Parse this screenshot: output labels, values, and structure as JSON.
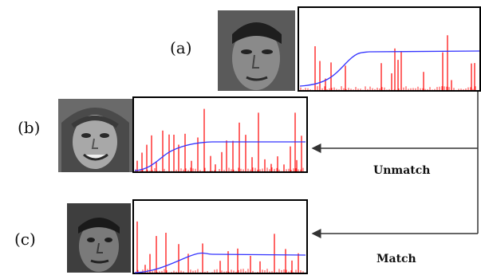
{
  "panels": [
    {
      "id": "a",
      "label": "(a)",
      "photo": "face-photo-a",
      "spikes": [
        22,
        28,
        35,
        42,
        60,
        105,
        118,
        122,
        126,
        130,
        158,
        182,
        188,
        193,
        218,
        222
      ]
    },
    {
      "id": "b",
      "label": "(b)",
      "photo": "face-photo-b",
      "spikes": [
        6,
        12,
        18,
        24,
        30,
        38,
        46,
        52,
        58,
        66,
        74,
        82,
        90,
        98,
        104,
        112,
        118,
        126,
        134,
        142,
        150,
        158,
        166,
        174,
        182,
        190,
        198,
        204,
        212,
        206
      ]
    },
    {
      "id": "c",
      "label": "(c)",
      "photo": "face-photo-c",
      "spikes": [
        6,
        16,
        22,
        30,
        42,
        58,
        70,
        88,
        110,
        120,
        132,
        148,
        160,
        178,
        192,
        200,
        208
      ]
    }
  ],
  "connections": [
    {
      "from": "a",
      "to": "b",
      "label": "Unmatch"
    },
    {
      "from": "a",
      "to": "c",
      "label": "Match"
    }
  ],
  "colors": {
    "histogram": "#ff0000",
    "cumulative_curve": "#3333ff",
    "frame": "#000000",
    "arrow": "#333333"
  }
}
